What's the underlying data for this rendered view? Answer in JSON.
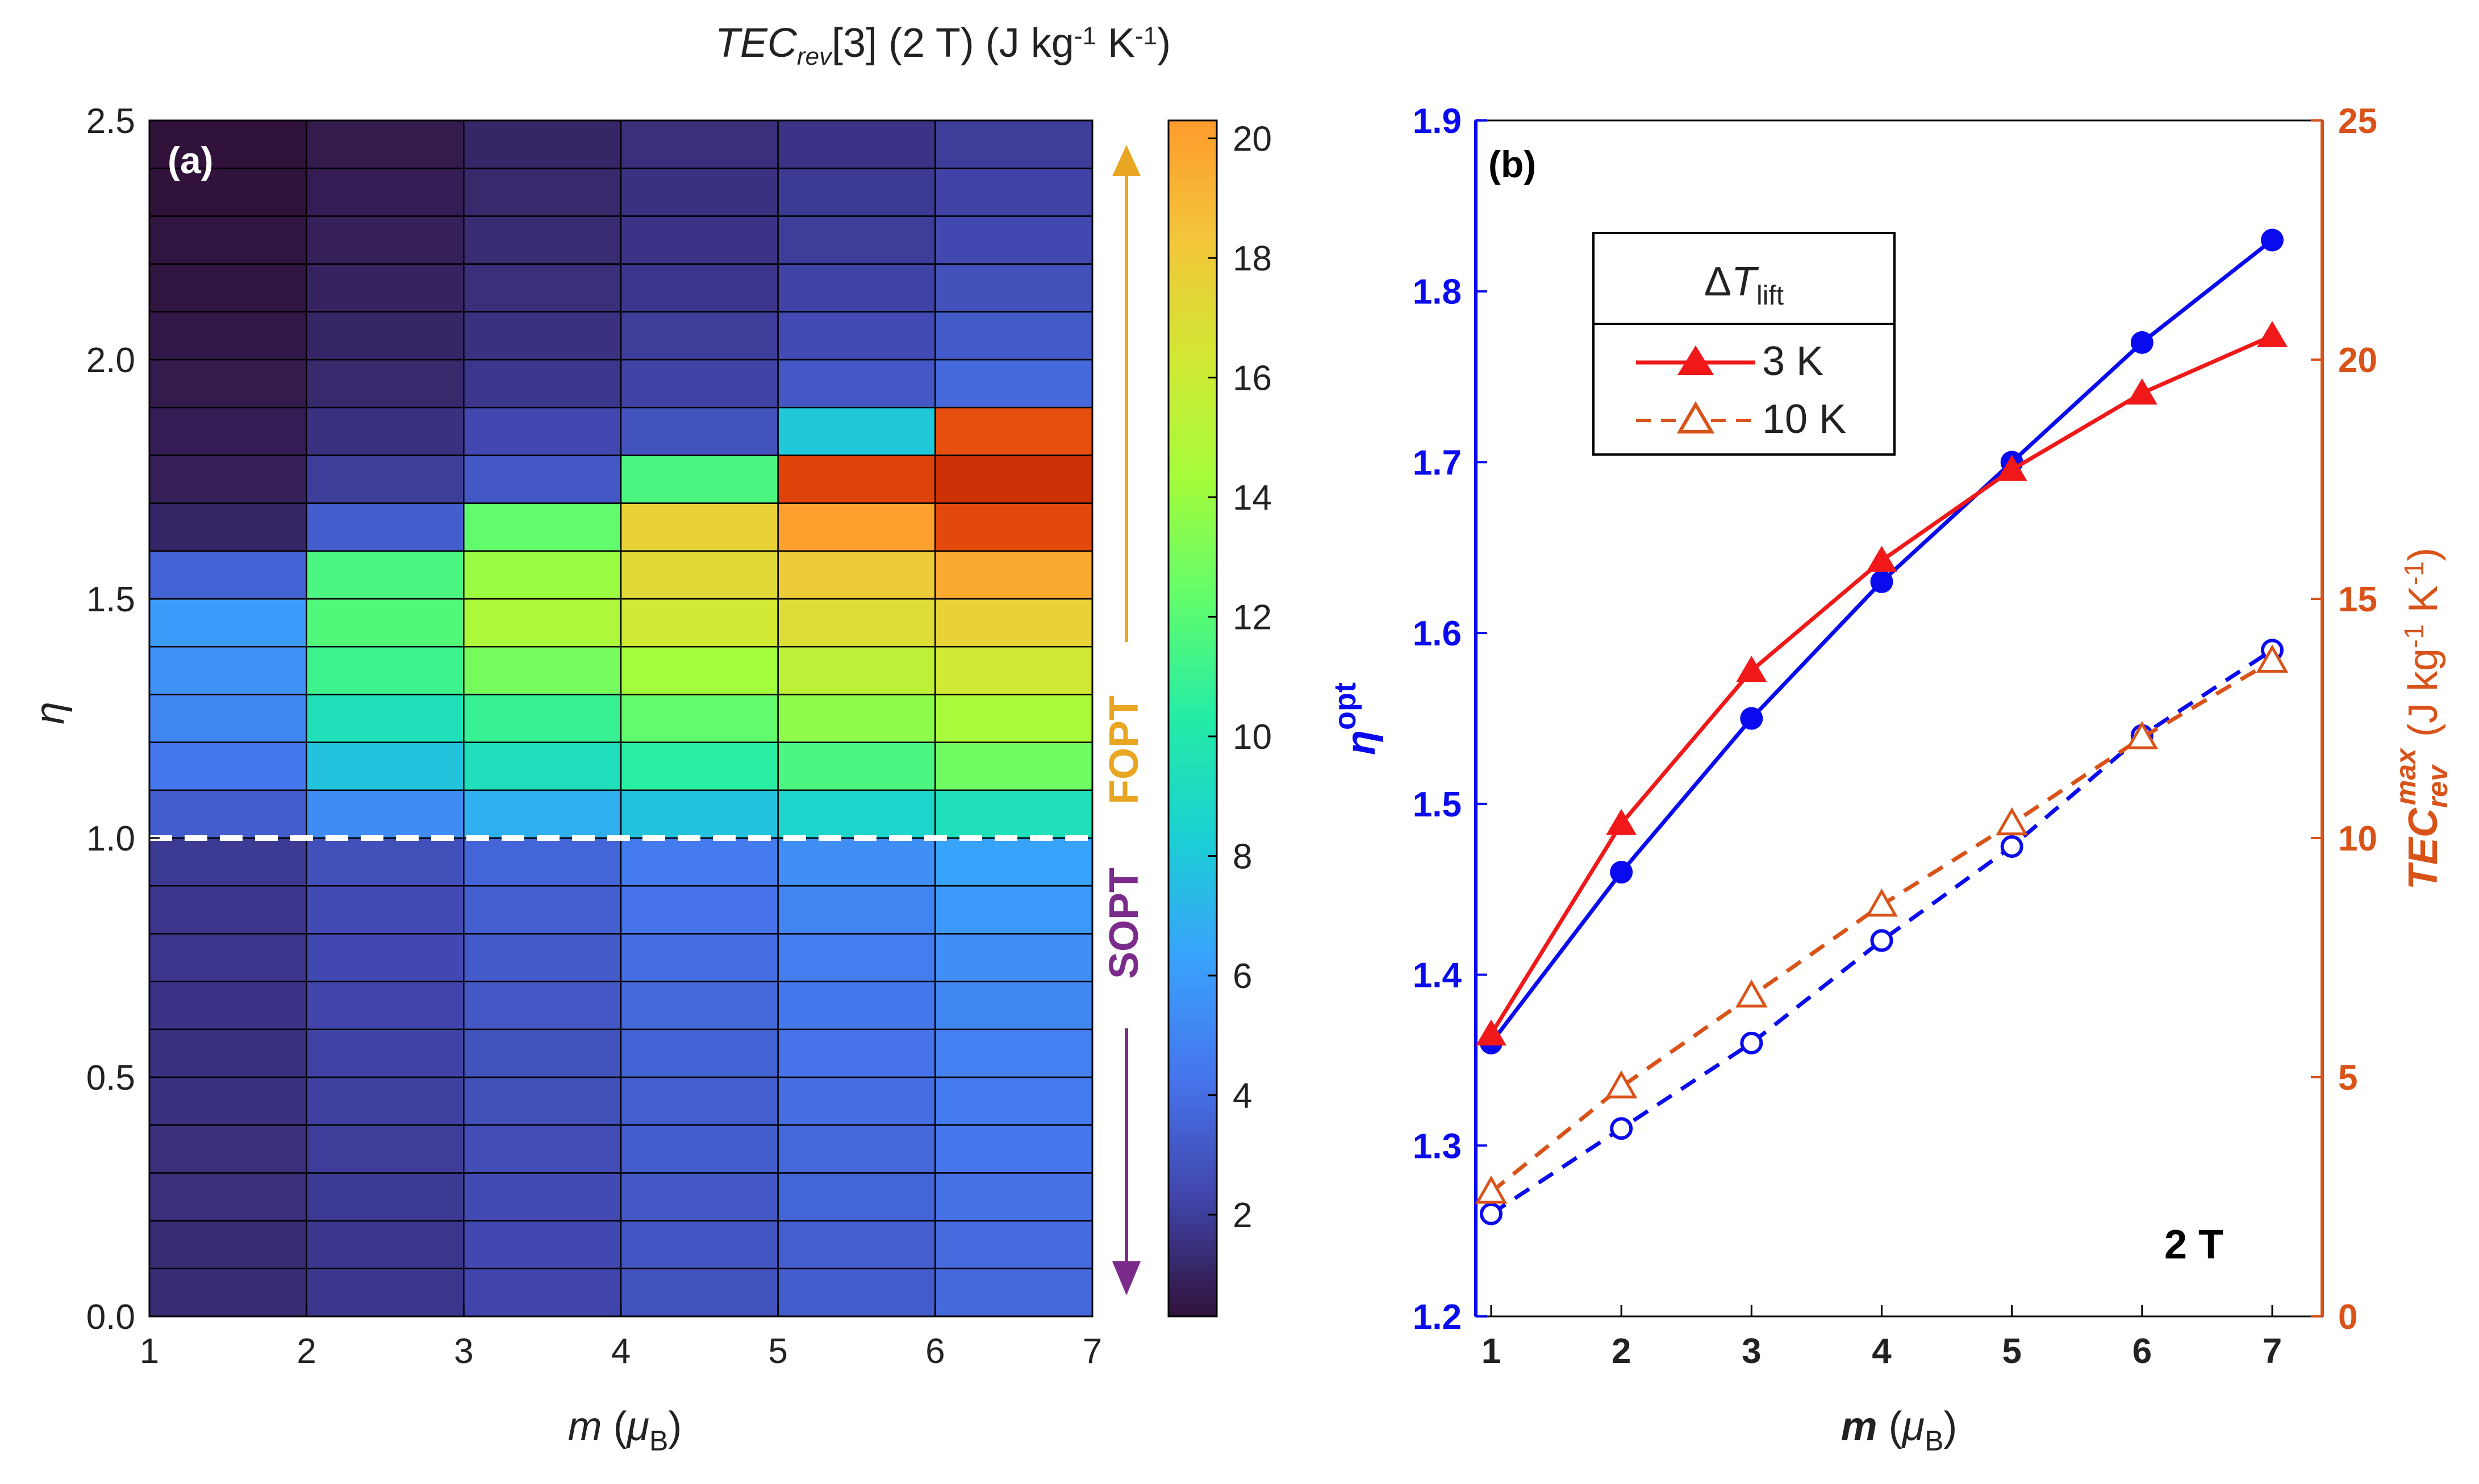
{
  "chart_data": [
    {
      "type": "heatmap",
      "panel_label": "(a)",
      "colorbar_title_parts": [
        "TEC",
        "rev",
        "[3] (2 T) (J kg",
        "-1",
        " K",
        "-1",
        ")"
      ],
      "xlabel_parts": [
        "m",
        " (",
        "μ",
        "B",
        ")"
      ],
      "ylabel": "η",
      "x_edges": [
        1,
        2,
        3,
        4,
        5,
        6,
        7
      ],
      "x_ticks": [
        "1",
        "2",
        "3",
        "4",
        "5",
        "6",
        "7"
      ],
      "y_ticks": [
        "0.0",
        "0.5",
        "1.0",
        "1.5",
        "2.0",
        "2.5"
      ],
      "xlim": [
        1,
        7
      ],
      "ylim": [
        0,
        2.5
      ],
      "row_height": 0.1,
      "colorbar_range": [
        0.3,
        20.3
      ],
      "colorbar_ticks": [
        "2",
        "4",
        "6",
        "8",
        "10",
        "12",
        "14",
        "16",
        "18",
        "20"
      ],
      "values": [
        [
          1.2,
          1.6,
          2.1,
          2.6,
          3.0,
          3.4
        ],
        [
          1.2,
          1.6,
          2.2,
          2.7,
          3.1,
          3.5
        ],
        [
          1.3,
          1.7,
          2.3,
          2.8,
          3.3,
          3.7
        ],
        [
          1.3,
          1.8,
          2.4,
          3.0,
          3.4,
          3.9
        ],
        [
          1.4,
          1.9,
          2.5,
          3.1,
          3.6,
          4.1
        ],
        [
          1.4,
          2.0,
          2.6,
          3.2,
          3.8,
          4.3
        ],
        [
          1.5,
          2.1,
          2.8,
          3.4,
          4.0,
          4.6
        ],
        [
          1.6,
          2.2,
          2.9,
          3.6,
          4.2,
          4.9
        ],
        [
          1.6,
          2.3,
          3.1,
          3.8,
          4.5,
          5.3
        ],
        [
          1.7,
          2.5,
          3.3,
          4.1,
          4.9,
          5.7
        ],
        [
          3.0,
          4.8,
          6.2,
          7.0,
          7.8,
          8.5
        ],
        [
          4.0,
          7.0,
          8.4,
          9.4,
          10.4,
          11.4
        ],
        [
          4.6,
          8.5,
          9.8,
          11.0,
          12.2,
          13.0
        ],
        [
          5.0,
          10.0,
          11.6,
          12.8,
          13.8,
          14.6
        ],
        [
          5.4,
          10.6,
          13.2,
          14.6,
          15.2,
          15.8
        ],
        [
          3.2,
          10.4,
          12.6,
          15.4,
          16.2,
          17.0
        ],
        [
          1.0,
          3.0,
          11.0,
          15.8,
          17.2,
          18.2
        ],
        [
          0.8,
          1.8,
          2.8,
          10.4,
          18.4,
          19.0
        ],
        [
          0.7,
          1.4,
          2.2,
          2.6,
          7.2,
          18.0
        ],
        [
          0.6,
          1.1,
          1.6,
          2.0,
          2.8,
          3.4
        ],
        [
          0.5,
          1.0,
          1.4,
          1.8,
          2.3,
          2.9
        ],
        [
          0.4,
          0.9,
          1.3,
          1.6,
          2.0,
          2.5
        ],
        [
          0.4,
          0.8,
          1.2,
          1.5,
          1.8,
          2.2
        ],
        [
          0.3,
          0.7,
          1.1,
          1.4,
          1.7,
          2.0
        ],
        [
          0.3,
          0.6,
          1.0,
          1.3,
          1.5,
          1.8
        ]
      ],
      "reference_line": {
        "y": 1.0,
        "style": "dashed",
        "color": "#ffffff"
      },
      "annotations": {
        "fopt": {
          "text": "FOPT",
          "color": "#E8A623",
          "arrow": "up"
        },
        "sopt": {
          "text": "SOPT",
          "color": "#7B2C8B",
          "arrow": "down"
        }
      }
    },
    {
      "type": "line",
      "panel_label": "(b)",
      "field_label": "2 T",
      "x": [
        1,
        2,
        3,
        4,
        5,
        6,
        7
      ],
      "x_ticks": [
        "1",
        "2",
        "3",
        "4",
        "5",
        "6",
        "7"
      ],
      "xlim": [
        1,
        7
      ],
      "xlabel_parts": [
        "m",
        " (",
        "μ",
        "B",
        ")"
      ],
      "ylabel_left_parts": [
        "η",
        "opt"
      ],
      "ylim_left": [
        1.2,
        1.9
      ],
      "yticks_left": [
        "1.2",
        "1.3",
        "1.4",
        "1.5",
        "1.6",
        "1.7",
        "1.8",
        "1.9"
      ],
      "ylabel_right_parts": [
        "TEC",
        "rev",
        "max",
        " (J kg",
        "-1",
        " K",
        "-1",
        ")"
      ],
      "ylim_right": [
        0,
        25
      ],
      "yticks_right": [
        "0",
        "5",
        "10",
        "15",
        "20",
        "25"
      ],
      "colors": {
        "left_axis": "#0A0AEE",
        "right_axis": "#D95319",
        "red": "#F01818",
        "orange": "#D95319"
      },
      "legend": {
        "title_parts": [
          "Δ",
          "T",
          "lift"
        ],
        "entries": [
          "3 K",
          "10 K"
        ],
        "placement": "upper-left"
      },
      "series": [
        {
          "name": "η_opt 3 K",
          "axis": "left",
          "color": "#0A0AEE",
          "marker": "filled-circle",
          "dash": "solid",
          "values": [
            1.36,
            1.46,
            1.55,
            1.63,
            1.7,
            1.77,
            1.83
          ]
        },
        {
          "name": "η_opt 10 K",
          "axis": "left",
          "color": "#0A0AEE",
          "marker": "open-circle",
          "dash": "dashed",
          "values": [
            1.26,
            1.31,
            1.36,
            1.42,
            1.475,
            1.54,
            1.59
          ]
        },
        {
          "name": "TEC max 3 K",
          "axis": "right",
          "color": "#F01818",
          "marker": "filled-triangle",
          "dash": "solid",
          "values": [
            5.9,
            10.3,
            13.5,
            15.8,
            17.7,
            19.3,
            20.5
          ]
        },
        {
          "name": "TEC max 10 K",
          "axis": "right",
          "color": "#D95319",
          "marker": "open-triangle",
          "dash": "dashed",
          "values": [
            2.6,
            4.8,
            6.7,
            8.6,
            10.3,
            12.1,
            13.7
          ]
        }
      ]
    }
  ]
}
